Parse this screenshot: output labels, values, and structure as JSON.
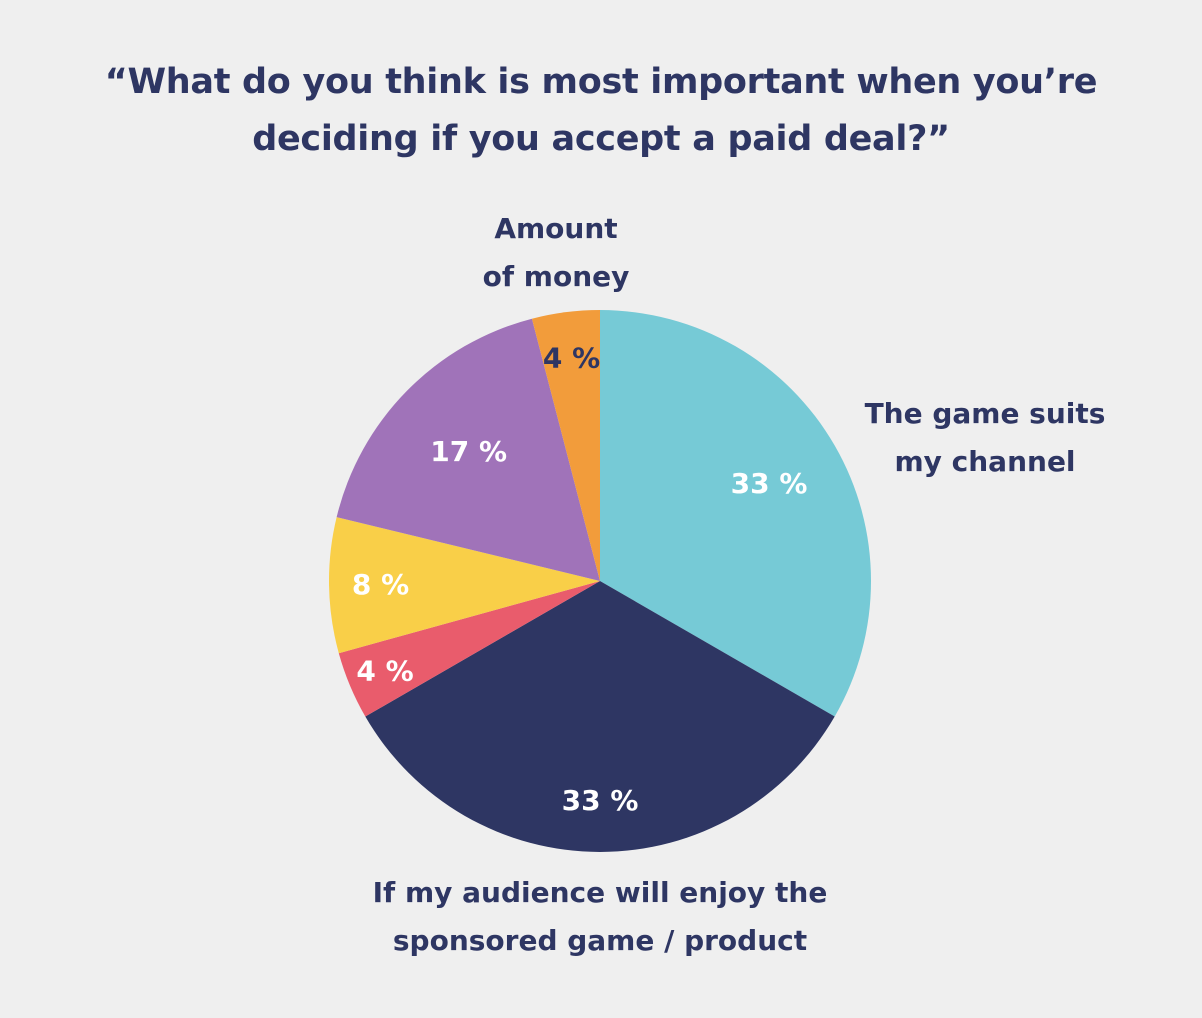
{
  "chart_data": {
    "type": "pie",
    "title_lines": [
      "“What do you think is most important when you’re",
      "deciding if you accept a paid deal?”"
    ],
    "slices": [
      {
        "label_lines": [
          "The game suits",
          "my channel"
        ],
        "value": 33,
        "value_label": "33 %",
        "color": "#76cad6",
        "label_color": "#ffffff"
      },
      {
        "label_lines": [
          "If my audience will enjoy the",
          "sponsored game / product"
        ],
        "value": 33,
        "value_label": "33 %",
        "color": "#2e3663",
        "label_color": "#ffffff"
      },
      {
        "label_lines": [],
        "value": 4,
        "value_label": "4 %",
        "color": "#e95c6c",
        "label_color": "#ffffff"
      },
      {
        "label_lines": [],
        "value": 8,
        "value_label": "8 %",
        "color": "#f9cf48",
        "label_color": "#ffffff"
      },
      {
        "label_lines": [],
        "value": 17,
        "value_label": "17 %",
        "color": "#a073b9",
        "label_color": "#ffffff"
      },
      {
        "label_lines": [
          "Amount",
          "of money"
        ],
        "value": 4,
        "value_label": "4 %",
        "color": "#f29c3b",
        "label_color": "#2e3663"
      }
    ]
  }
}
